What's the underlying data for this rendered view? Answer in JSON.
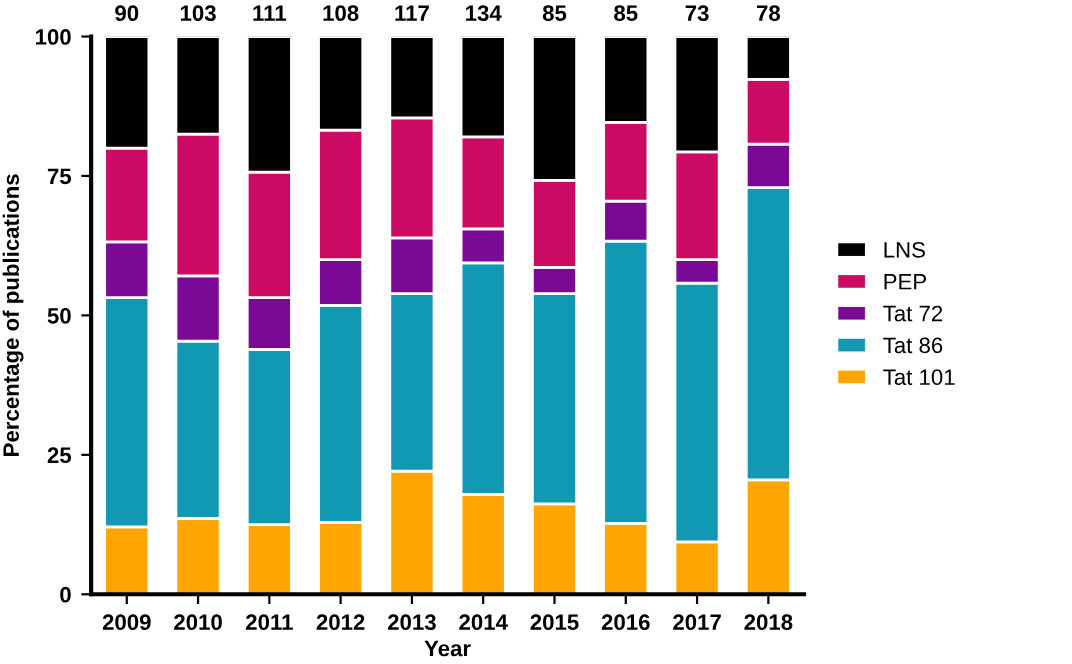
{
  "chart_data": {
    "type": "bar",
    "stacked": true,
    "xlabel": "Year",
    "ylabel": "Percentage of publications",
    "categories": [
      "2009",
      "2010",
      "2011",
      "2012",
      "2013",
      "2014",
      "2015",
      "2016",
      "2017",
      "2018"
    ],
    "series": [
      {
        "name": "Tat 101",
        "color": "#ffa500",
        "values": [
          12.1,
          13.6,
          12.5,
          12.9,
          22.1,
          17.9,
          16.2,
          12.7,
          9.4,
          20.5
        ]
      },
      {
        "name": "Tat 86",
        "color": "#1199b4",
        "values": [
          41.1,
          31.8,
          31.4,
          38.9,
          31.8,
          41.5,
          37.7,
          50.6,
          46.4,
          52.4
        ]
      },
      {
        "name": "Tat 72",
        "color": "#7a0a96",
        "values": [
          10.0,
          11.7,
          9.3,
          8.2,
          10.0,
          6.1,
          4.7,
          7.2,
          4.2,
          7.8
        ]
      },
      {
        "name": "PEP",
        "color": "#cc0a64",
        "values": [
          16.8,
          25.4,
          22.5,
          23.2,
          21.5,
          16.5,
          15.6,
          14.1,
          19.3,
          11.6
        ]
      },
      {
        "name": "LNS",
        "color": "#000000",
        "values": [
          20.0,
          17.5,
          24.3,
          16.8,
          14.6,
          18.0,
          25.8,
          15.4,
          20.7,
          7.7
        ]
      }
    ],
    "annotations": [
      {
        "text": "90",
        "x": "2009",
        "y": 100
      },
      {
        "text": "103",
        "x": "2010",
        "y": 100
      },
      {
        "text": "111",
        "x": "2011",
        "y": 100
      },
      {
        "text": "108",
        "x": "2012",
        "y": 100
      },
      {
        "text": "117",
        "x": "2013",
        "y": 100
      },
      {
        "text": "134",
        "x": "2014",
        "y": 100
      },
      {
        "text": "85",
        "x": "2015",
        "y": 100
      },
      {
        "text": "85",
        "x": "2016",
        "y": 100
      },
      {
        "text": "73",
        "x": "2017",
        "y": 100
      },
      {
        "text": "78",
        "x": "2018",
        "y": 100
      }
    ],
    "ylim": [
      0,
      100
    ],
    "yticks": [
      0,
      25,
      50,
      75,
      100
    ],
    "grid": false,
    "legend": "right"
  }
}
